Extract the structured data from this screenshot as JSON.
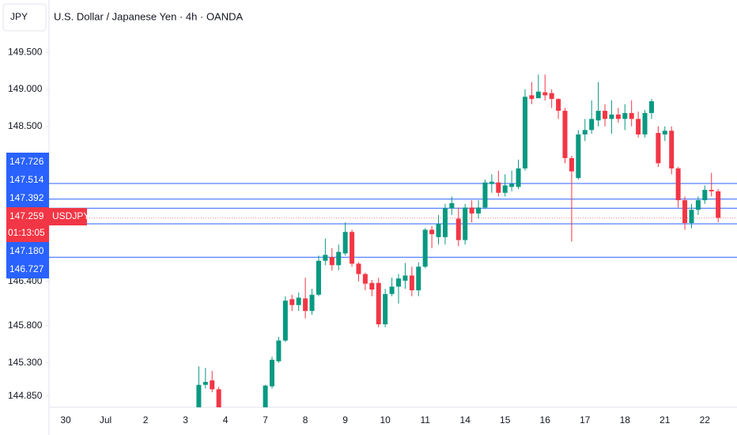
{
  "chart_data": {
    "type": "candlestick",
    "currency": "JPY",
    "title": "U.S. Dollar / Japanese Yen · 4h · OANDA",
    "up_color": "#089981",
    "down_color": "#f23645",
    "line_color": "#2962ff",
    "grid": false,
    "ylim": [
      144.696,
      150.21
    ],
    "yticks": [
      {
        "value": 144.85,
        "label": "144.850"
      },
      {
        "value": 145.3,
        "label": "145.300"
      },
      {
        "value": 145.8,
        "label": "145.800"
      },
      {
        "value": 146.4,
        "label": "146.400"
      },
      {
        "value": 148.5,
        "label": "148.500"
      },
      {
        "value": 149,
        "label": "149.000"
      },
      {
        "value": 149.5,
        "label": "149.500"
      }
    ],
    "price_lines": [
      147.726,
      147.514,
      147.392,
      {
        "value": 147.18,
        "label": "147.180"
      },
      146.727
    ],
    "current_price": {
      "value": 147.259,
      "symbol": "USDJPY",
      "countdown": "01:13:05"
    },
    "categories": [
      "30",
      null,
      null,
      null,
      null,
      null,
      "Jul",
      null,
      null,
      null,
      null,
      null,
      "2",
      null,
      null,
      null,
      null,
      null,
      "3",
      null,
      null,
      null,
      null,
      null,
      "4",
      null,
      null,
      null,
      null,
      null,
      "7",
      null,
      null,
      null,
      null,
      null,
      "8",
      null,
      null,
      null,
      null,
      null,
      "9",
      null,
      null,
      null,
      null,
      null,
      "10",
      null,
      null,
      null,
      null,
      null,
      "11",
      null,
      null,
      null,
      null,
      null,
      "14",
      null,
      null,
      null,
      null,
      null,
      "15",
      null,
      null,
      null,
      null,
      null,
      "16",
      null,
      null,
      null,
      null,
      null,
      "17",
      null,
      null,
      null,
      null,
      null,
      "18",
      null,
      null,
      null,
      null,
      null,
      "21",
      null,
      null,
      null,
      null,
      null,
      "22",
      null,
      null
    ],
    "open": [
      null,
      null,
      null,
      null,
      null,
      null,
      null,
      null,
      null,
      null,
      null,
      null,
      null,
      null,
      null,
      null,
      null,
      null,
      null,
      null,
      144.6,
      145.0,
      145.06,
      144.94,
      null,
      null,
      null,
      null,
      null,
      null,
      144.6,
      144.98,
      145.32,
      145.6,
      146.16,
      146.08,
      146.17,
      146.0,
      146.22,
      146.68,
      146.73,
      146.62,
      146.78,
      147.07,
      146.64,
      146.5,
      146.38,
      146.38,
      145.82,
      146.23,
      146.33,
      146.41,
      146.48,
      146.28,
      146.6,
      147.1,
      147.0,
      147.0,
      147.39,
      147.25,
      146.96,
      147.4,
      147.32,
      147.4,
      147.72,
      147.74,
      147.6,
      147.68,
      147.68,
      147.93,
      148.92,
      148.88,
      148.96,
      148.95,
      148.87,
      148.71,
      148.07,
      147.8,
      148.39,
      148.45,
      148.58,
      148.71,
      148.6,
      148.66,
      148.6,
      148.68,
      148.6,
      148.39,
      148.68,
      148.41,
      148.39,
      148.44,
      147.93,
      147.5,
      147.19,
      147.37,
      147.5,
      147.64,
      147.62
    ],
    "high": [
      null,
      null,
      null,
      null,
      null,
      null,
      null,
      null,
      null,
      null,
      null,
      null,
      null,
      null,
      null,
      null,
      null,
      null,
      null,
      null,
      145.25,
      145.23,
      145.19,
      144.97,
      null,
      null,
      null,
      null,
      null,
      null,
      145.0,
      145.38,
      145.65,
      146.2,
      146.22,
      146.25,
      146.45,
      146.3,
      146.75,
      146.98,
      146.85,
      146.9,
      147.2,
      147.1,
      146.66,
      146.52,
      146.42,
      146.45,
      146.3,
      146.45,
      146.5,
      146.65,
      146.6,
      146.66,
      147.12,
      147.15,
      147.3,
      147.45,
      147.55,
      147.4,
      147.45,
      147.5,
      147.5,
      147.78,
      147.85,
      147.9,
      147.85,
      147.9,
      148.05,
      149.0,
      149.1,
      149.2,
      149.2,
      149.0,
      148.88,
      148.75,
      148.1,
      148.45,
      148.6,
      148.85,
      149.1,
      148.8,
      148.85,
      148.75,
      148.8,
      148.85,
      148.7,
      148.72,
      148.87,
      148.5,
      148.5,
      148.5,
      147.95,
      147.55,
      147.45,
      147.55,
      147.7,
      147.87,
      147.65
    ],
    "low": [
      null,
      null,
      null,
      null,
      null,
      null,
      null,
      null,
      null,
      null,
      null,
      null,
      null,
      null,
      null,
      null,
      null,
      null,
      null,
      null,
      144.5,
      144.95,
      144.9,
      144.5,
      null,
      null,
      null,
      null,
      null,
      null,
      144.5,
      144.95,
      145.3,
      145.58,
      146.0,
      146.0,
      145.9,
      145.95,
      146.2,
      146.62,
      146.55,
      146.55,
      146.75,
      146.6,
      146.4,
      146.28,
      146.2,
      145.78,
      145.78,
      146.2,
      146.1,
      146.3,
      146.2,
      146.2,
      146.58,
      146.85,
      146.9,
      146.9,
      147.3,
      146.88,
      146.9,
      147.2,
      147.25,
      147.38,
      147.6,
      147.55,
      147.55,
      147.62,
      147.65,
      147.9,
      148.8,
      148.9,
      148.85,
      148.75,
      148.6,
      148.0,
      146.94,
      147.78,
      148.3,
      148.4,
      148.5,
      148.5,
      148.4,
      148.55,
      148.45,
      148.5,
      148.35,
      148.35,
      148.6,
      147.95,
      148.3,
      147.85,
      147.4,
      147.1,
      147.12,
      147.3,
      147.45,
      147.55,
      147.2
    ],
    "close": [
      null,
      null,
      null,
      null,
      null,
      null,
      null,
      null,
      null,
      null,
      null,
      null,
      null,
      null,
      null,
      null,
      null,
      null,
      null,
      null,
      145.0,
      145.04,
      144.94,
      144.6,
      null,
      null,
      null,
      null,
      null,
      null,
      144.99,
      145.34,
      145.6,
      146.14,
      146.08,
      146.18,
      146.0,
      146.22,
      146.68,
      146.76,
      146.62,
      146.8,
      147.07,
      146.64,
      146.5,
      146.37,
      146.29,
      145.82,
      146.23,
      146.33,
      146.44,
      146.48,
      146.28,
      146.6,
      147.1,
      147.04,
      147.18,
      147.39,
      147.46,
      146.96,
      147.4,
      147.32,
      147.4,
      147.74,
      147.75,
      147.6,
      147.7,
      147.72,
      147.93,
      148.9,
      148.87,
      148.97,
      148.92,
      148.87,
      148.71,
      148.07,
      147.89,
      148.39,
      148.45,
      148.6,
      148.71,
      148.6,
      148.66,
      148.6,
      148.68,
      148.6,
      148.39,
      148.68,
      148.84,
      148.0,
      148.44,
      147.93,
      147.5,
      147.19,
      147.37,
      147.5,
      147.64,
      147.62,
      147.26
    ]
  }
}
